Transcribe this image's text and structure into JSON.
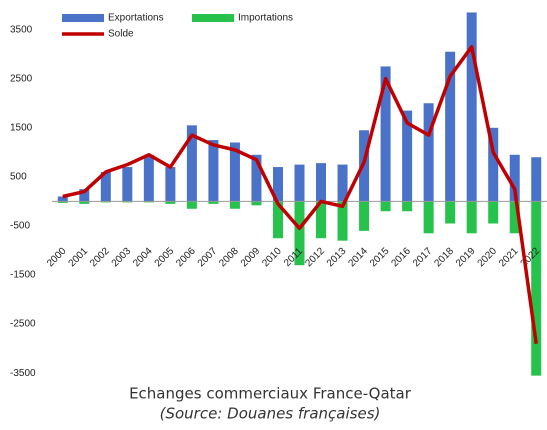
{
  "chart_data": {
    "type": "bar_line",
    "title": "Echanges commerciaux France-Qatar",
    "subtitle": "(Source: Douanes françaises)",
    "categories": [
      "2000",
      "2001",
      "2002",
      "2003",
      "2004",
      "2005",
      "2006",
      "2007",
      "2008",
      "2009",
      "2010",
      "2011",
      "2012",
      "2013",
      "2014",
      "2015",
      "2016",
      "2017",
      "2018",
      "2019",
      "2020",
      "2021",
      "2022"
    ],
    "series": [
      {
        "name": "Exportations",
        "color": "#4a72c8",
        "kind": "bar",
        "values": [
          100,
          250,
          600,
          700,
          950,
          700,
          1550,
          1250,
          1200,
          950,
          700,
          750,
          780,
          750,
          1450,
          2750,
          1850,
          2000,
          3050,
          3850,
          1500,
          950,
          900
        ]
      },
      {
        "name": "Importations",
        "color": "#27c24c",
        "kind": "bar",
        "values": [
          -30,
          -50,
          -20,
          -20,
          -20,
          -50,
          -150,
          -50,
          -150,
          -80,
          -750,
          -1300,
          -750,
          -800,
          -600,
          -200,
          -200,
          -650,
          -450,
          -650,
          -450,
          -650,
          -3550
        ]
      },
      {
        "name": "Solde",
        "color": "#c00000",
        "kind": "line",
        "values": [
          100,
          200,
          600,
          750,
          950,
          700,
          1350,
          1150,
          1050,
          850,
          -50,
          -550,
          0,
          -100,
          800,
          2500,
          1600,
          1350,
          2550,
          3150,
          1000,
          250,
          -2900
        ]
      }
    ],
    "ylim": [
      -3700,
      3900
    ],
    "yticks": [
      3500,
      2500,
      1500,
      500,
      -500,
      -1500,
      -2500,
      -3500
    ],
    "legend": "top-left",
    "grid": false
  }
}
